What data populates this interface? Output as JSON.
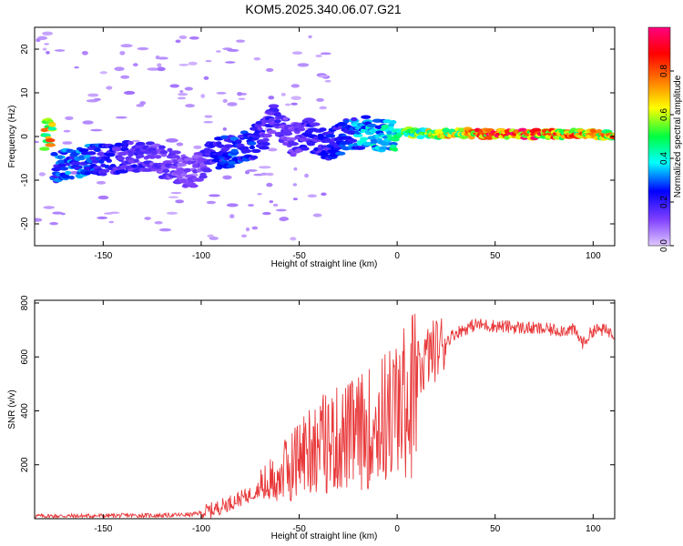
{
  "figure": {
    "title": "KOM5.2025.340.06.07.G21"
  },
  "chart_data": [
    {
      "type": "heatmap",
      "name": "spectrogram",
      "xlabel": "Height of straight line (km)",
      "ylabel": "Frequency (Hz)",
      "xlim": [
        -185,
        111
      ],
      "ylim": [
        -25,
        25
      ],
      "xticks": [
        -150,
        -100,
        -50,
        0,
        50,
        100
      ],
      "yticks": [
        -20,
        -10,
        0,
        10,
        20
      ],
      "colorbar": {
        "label": "Normalized spectral amplitude",
        "range": [
          0,
          1
        ],
        "ticks": [
          0.0,
          0.2,
          0.4,
          0.6,
          0.8
        ],
        "colors": [
          "#e0c8ff",
          "#8040ff",
          "#0000ff",
          "#00ffff",
          "#00ff40",
          "#ffff00",
          "#ff8000",
          "#ff0000",
          "#ff0080"
        ]
      },
      "ridge": [
        {
          "x": -175,
          "f": -7.0,
          "amp": 0.28
        },
        {
          "x": -160,
          "f": -5.5,
          "amp": 0.3
        },
        {
          "x": -145,
          "f": -5.0,
          "amp": 0.22
        },
        {
          "x": -130,
          "f": -4.5,
          "amp": 0.18
        },
        {
          "x": -115,
          "f": -6.5,
          "amp": 0.15
        },
        {
          "x": -105,
          "f": -8.5,
          "amp": 0.12
        },
        {
          "x": -95,
          "f": -4.0,
          "amp": 0.2
        },
        {
          "x": -85,
          "f": -3.5,
          "amp": 0.28
        },
        {
          "x": -75,
          "f": -2.0,
          "amp": 0.25
        },
        {
          "x": -68,
          "f": 0.5,
          "amp": 0.2
        },
        {
          "x": -62,
          "f": 5.0,
          "amp": 0.18
        },
        {
          "x": -55,
          "f": -1.0,
          "amp": 0.15
        },
        {
          "x": -45,
          "f": 0.5,
          "amp": 0.2
        },
        {
          "x": -35,
          "f": -2.0,
          "amp": 0.22
        },
        {
          "x": -25,
          "f": 0.5,
          "amp": 0.28
        },
        {
          "x": -15,
          "f": 1.0,
          "amp": 0.35
        },
        {
          "x": -5,
          "f": 0.0,
          "amp": 0.4
        },
        {
          "x": 5,
          "f": 1.0,
          "amp": 0.5
        },
        {
          "x": 20,
          "f": 0.5,
          "amp": 0.62
        },
        {
          "x": 35,
          "f": 0.8,
          "amp": 0.7
        },
        {
          "x": 50,
          "f": 0.5,
          "amp": 0.88
        },
        {
          "x": 65,
          "f": 0.5,
          "amp": 0.85
        },
        {
          "x": 80,
          "f": 0.5,
          "amp": 0.78
        },
        {
          "x": 95,
          "f": 0.5,
          "amp": 0.72
        },
        {
          "x": 108,
          "f": 0.5,
          "amp": 0.7
        }
      ]
    },
    {
      "type": "line",
      "name": "snr",
      "xlabel": "Height of straight line (km)",
      "ylabel": "SNR (v/v)",
      "xlim": [
        -185,
        111
      ],
      "ylim": [
        0,
        810
      ],
      "xticks": [
        -150,
        -100,
        -50,
        0,
        50,
        100
      ],
      "yticks": [
        200,
        400,
        600,
        800
      ],
      "color": "#e8383a",
      "series": [
        {
          "name": "SNR",
          "x": [
            -185,
            -160,
            -140,
            -120,
            -105,
            -95,
            -85,
            -75,
            -65,
            -55,
            -45,
            -35,
            -25,
            -15,
            -5,
            0,
            5,
            10,
            15,
            20,
            25,
            30,
            40,
            50,
            60,
            70,
            80,
            90,
            95,
            100,
            105,
            111
          ],
          "y": [
            10,
            10,
            12,
            12,
            15,
            30,
            60,
            90,
            140,
            200,
            280,
            300,
            320,
            350,
            400,
            430,
            460,
            530,
            600,
            630,
            660,
            690,
            720,
            715,
            710,
            705,
            700,
            700,
            650,
            700,
            700,
            690
          ]
        }
      ]
    }
  ]
}
